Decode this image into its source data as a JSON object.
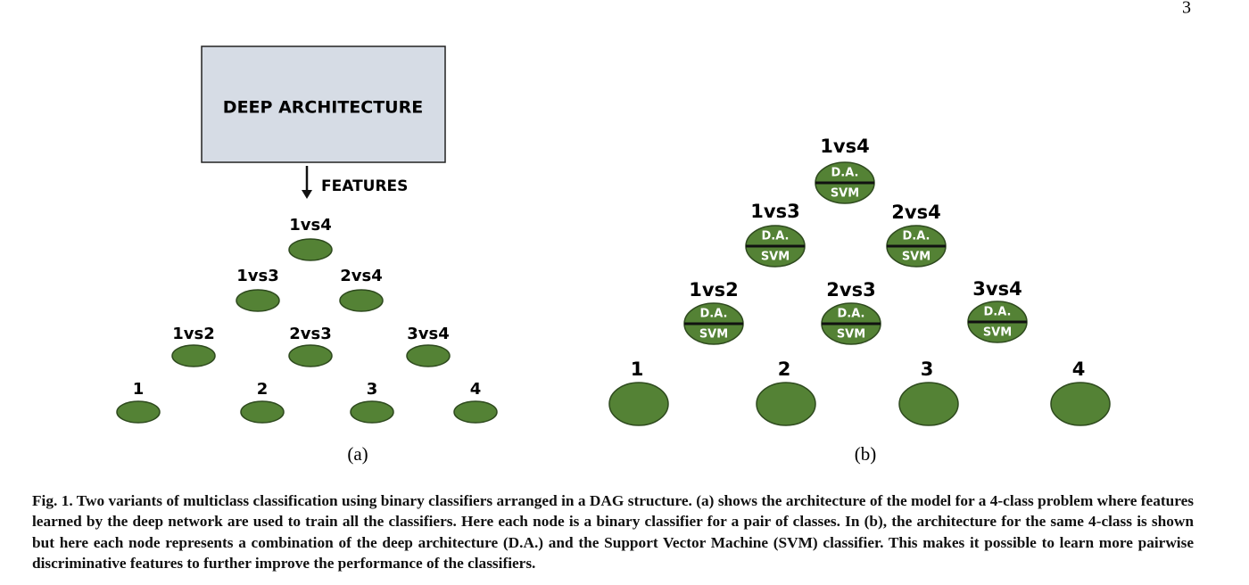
{
  "page_number": "3",
  "panel_a": {
    "box_label": "DEEP ARCHITECTURE",
    "arrow_label": "FEATURES",
    "classifiers": [
      "1vs4",
      "1vs3",
      "2vs4",
      "1vs2",
      "2vs3",
      "3vs4"
    ],
    "classes": [
      "1",
      "2",
      "3",
      "4"
    ],
    "caption": "(a)"
  },
  "panel_b": {
    "classifiers": [
      "1vs4",
      "1vs3",
      "2vs4",
      "1vs2",
      "2vs3",
      "3vs4"
    ],
    "node_top": "D.A.",
    "node_bottom": "SVM",
    "classes": [
      "1",
      "2",
      "3",
      "4"
    ],
    "caption": "(b)"
  },
  "caption": "Fig. 1. Two variants of multiclass classification using binary classifiers arranged in a DAG structure. (a) shows the architecture of the model for a 4-class problem where features learned by the deep network are used to train all the classifiers. Here each node is a binary classifier for a pair of classes. In (b), the architecture for the same 4-class is shown but here each node represents a combination of the deep architecture (D.A.) and the Support Vector Machine (SVM) classifier. This makes it possible to learn more pairwise discriminative features to further improve the performance of the classifiers."
}
